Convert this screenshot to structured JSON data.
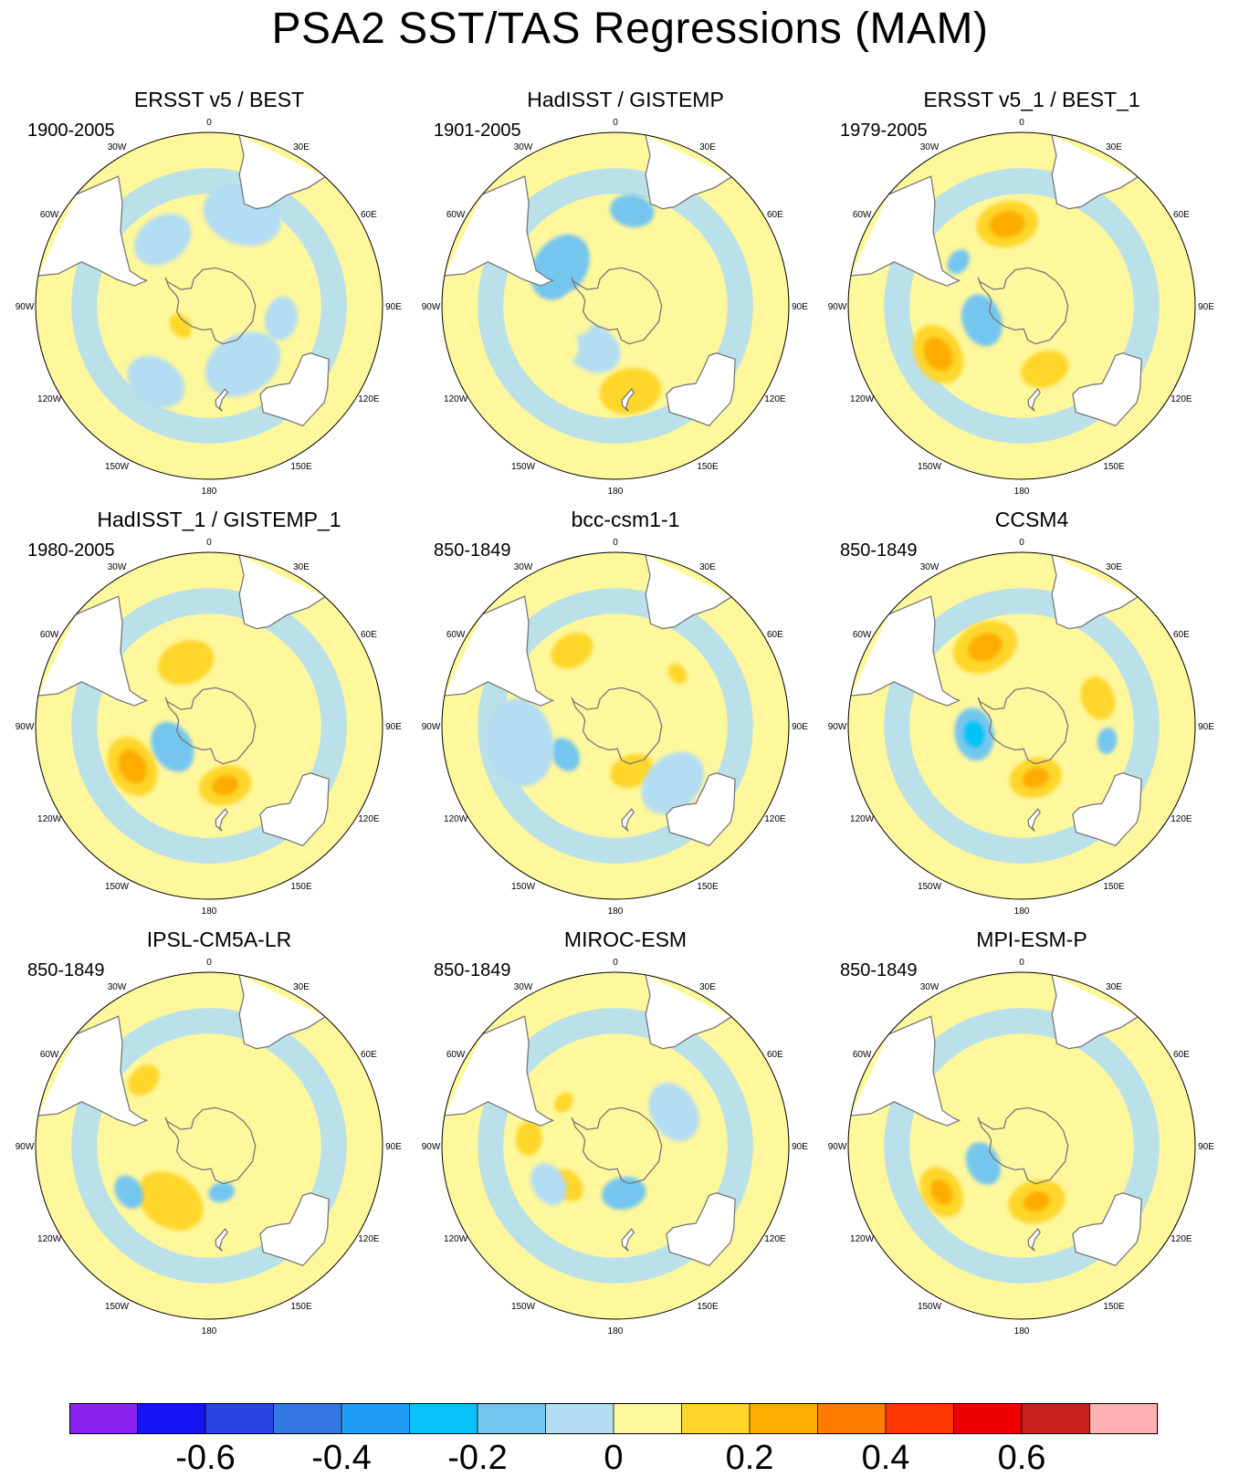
{
  "title": "PSA2 SST/TAS Regressions (MAM)",
  "lon_labels": [
    "0",
    "30E",
    "60E",
    "90E",
    "120E",
    "150E",
    "180",
    "150W",
    "120W",
    "90W",
    "60W",
    "30W"
  ],
  "panels": [
    {
      "title": "ERSST v5 / BEST",
      "period": "1900-2005",
      "blobs": [
        {
          "lat": -48,
          "lon": -35,
          "r": 14,
          "level": -0.05
        },
        {
          "lat": -40,
          "lon": 20,
          "r": 18,
          "level": -0.05
        },
        {
          "lat": -72,
          "lon": -125,
          "r": 6,
          "level": 0.15
        },
        {
          "lat": -55,
          "lon": 150,
          "r": 18,
          "level": -0.05
        },
        {
          "lat": -42,
          "lon": -145,
          "r": 14,
          "level": -0.05
        },
        {
          "lat": -52,
          "lon": 100,
          "r": 10,
          "level": -0.05
        }
      ]
    },
    {
      "title": "HadISST / GISTEMP",
      "period": "1901-2005",
      "blobs": [
        {
          "lat": -55,
          "lon": -55,
          "r": 16,
          "level": -0.15
        },
        {
          "lat": -40,
          "lon": 10,
          "r": 10,
          "level": -0.15
        },
        {
          "lat": -65,
          "lon": -150,
          "r": 14,
          "level": -0.05
        },
        {
          "lat": -45,
          "lon": 170,
          "r": 14,
          "level": 0.15
        },
        {
          "lat": -70,
          "lon": -100,
          "r": 10,
          "level": 0.05
        },
        {
          "lat": -55,
          "lon": -120,
          "r": 12,
          "level": 0.05
        }
      ]
    },
    {
      "title": "ERSST v5_1 / BEST_1",
      "period": "1979-2005",
      "blobs": [
        {
          "lat": -47,
          "lon": -10,
          "r": 14,
          "level": 0.15
        },
        {
          "lat": -47,
          "lon": -10,
          "r": 8,
          "level": 0.25
        },
        {
          "lat": -40,
          "lon": -120,
          "r": 14,
          "level": 0.15
        },
        {
          "lat": -40,
          "lon": -120,
          "r": 8,
          "level": 0.25
        },
        {
          "lat": -55,
          "lon": 160,
          "r": 11,
          "level": 0.15
        },
        {
          "lat": -68,
          "lon": -110,
          "r": 12,
          "level": -0.15
        },
        {
          "lat": -50,
          "lon": -55,
          "r": 6,
          "level": -0.15
        },
        {
          "lat": -45,
          "lon": 60,
          "r": 10,
          "level": 0.05
        }
      ]
    },
    {
      "title": "HadISST_1 / GISTEMP_1",
      "period": "1980-2005",
      "blobs": [
        {
          "lat": -45,
          "lon": -118,
          "r": 14,
          "level": 0.15
        },
        {
          "lat": -45,
          "lon": -118,
          "r": 8,
          "level": 0.25
        },
        {
          "lat": -58,
          "lon": 165,
          "r": 12,
          "level": 0.15
        },
        {
          "lat": -58,
          "lon": 165,
          "r": 6,
          "level": 0.25
        },
        {
          "lat": -55,
          "lon": -20,
          "r": 13,
          "level": 0.15
        },
        {
          "lat": -68,
          "lon": -120,
          "r": 12,
          "level": -0.15
        },
        {
          "lat": -45,
          "lon": 60,
          "r": 11,
          "level": 0.05
        }
      ]
    },
    {
      "title": "bcc-csm1-1",
      "period": "850-1849",
      "blobs": [
        {
          "lat": -45,
          "lon": -30,
          "r": 10,
          "level": 0.15
        },
        {
          "lat": -60,
          "lon": -120,
          "r": 8,
          "level": -0.15
        },
        {
          "lat": -65,
          "lon": 160,
          "r": 10,
          "level": 0.15
        },
        {
          "lat": -48,
          "lon": 50,
          "r": 5,
          "level": 0.15
        },
        {
          "lat": -40,
          "lon": -100,
          "r": 20,
          "level": -0.05
        },
        {
          "lat": -48,
          "lon": 135,
          "r": 16,
          "level": -0.05
        }
      ]
    },
    {
      "title": "CCSM4",
      "period": "850-1849",
      "blobs": [
        {
          "lat": -45,
          "lon": -25,
          "r": 15,
          "level": 0.15
        },
        {
          "lat": -45,
          "lon": -25,
          "r": 8,
          "level": 0.25
        },
        {
          "lat": -62,
          "lon": 165,
          "r": 12,
          "level": 0.15
        },
        {
          "lat": -62,
          "lon": 165,
          "r": 6,
          "level": 0.25
        },
        {
          "lat": -48,
          "lon": 70,
          "r": 10,
          "level": 0.15
        },
        {
          "lat": -65,
          "lon": -100,
          "r": 12,
          "level": -0.15
        },
        {
          "lat": -65,
          "lon": -100,
          "r": 6,
          "level": -0.25
        },
        {
          "lat": -45,
          "lon": 100,
          "r": 6,
          "level": -0.15
        }
      ]
    },
    {
      "title": "IPSL-CM5A-LR",
      "period": "850-1849",
      "blobs": [
        {
          "lat": -55,
          "lon": -145,
          "r": 16,
          "level": 0.15
        },
        {
          "lat": -42,
          "lon": -120,
          "r": 8,
          "level": -0.15
        },
        {
          "lat": -42,
          "lon": -45,
          "r": 8,
          "level": 0.15
        },
        {
          "lat": -65,
          "lon": 165,
          "r": 6,
          "level": -0.15
        },
        {
          "lat": -50,
          "lon": 130,
          "r": 14,
          "level": 0.05
        }
      ]
    },
    {
      "title": "MIROC-ESM",
      "period": "850-1849",
      "blobs": [
        {
          "lat": -58,
          "lon": -130,
          "r": 8,
          "level": 0.15
        },
        {
          "lat": -45,
          "lon": -85,
          "r": 8,
          "level": 0.15
        },
        {
          "lat": -65,
          "lon": 170,
          "r": 10,
          "level": -0.15
        },
        {
          "lat": -55,
          "lon": -50,
          "r": 5,
          "level": 0.15
        },
        {
          "lat": -50,
          "lon": -120,
          "r": 10,
          "level": -0.05
        },
        {
          "lat": -55,
          "lon": 60,
          "r": 14,
          "level": -0.05
        }
      ]
    },
    {
      "title": "MPI-ESM-P",
      "period": "850-1849",
      "blobs": [
        {
          "lat": -42,
          "lon": -120,
          "r": 12,
          "level": 0.15
        },
        {
          "lat": -42,
          "lon": -120,
          "r": 6,
          "level": 0.25
        },
        {
          "lat": -60,
          "lon": 165,
          "r": 13,
          "level": 0.15
        },
        {
          "lat": -60,
          "lon": 165,
          "r": 6,
          "level": 0.25
        },
        {
          "lat": -55,
          "lon": -15,
          "r": 14,
          "level": 0.05
        },
        {
          "lat": -68,
          "lon": -115,
          "r": 10,
          "level": -0.15
        },
        {
          "lat": -45,
          "lon": 70,
          "r": 10,
          "level": 0.05
        }
      ]
    }
  ],
  "colorbar": {
    "levels": [
      -0.7,
      -0.6,
      -0.5,
      -0.4,
      -0.3,
      -0.2,
      -0.1,
      0,
      0.1,
      0.2,
      0.3,
      0.4,
      0.5,
      0.6,
      0.7
    ],
    "colors": [
      "#8a21f0",
      "#1414f5",
      "#2844e6",
      "#3478e6",
      "#1f9cf6",
      "#06c2f8",
      "#75c6ef",
      "#b3ddf2",
      "#fff79c",
      "#ffd62a",
      "#ffac00",
      "#ff7c00",
      "#ff3600",
      "#ee0000",
      "#cc1f1f",
      "#ffb0b0"
    ],
    "tick_labels": [
      "-0.6",
      "-0.4",
      "-0.2",
      "0",
      "0.2",
      "0.4",
      "0.6"
    ]
  }
}
